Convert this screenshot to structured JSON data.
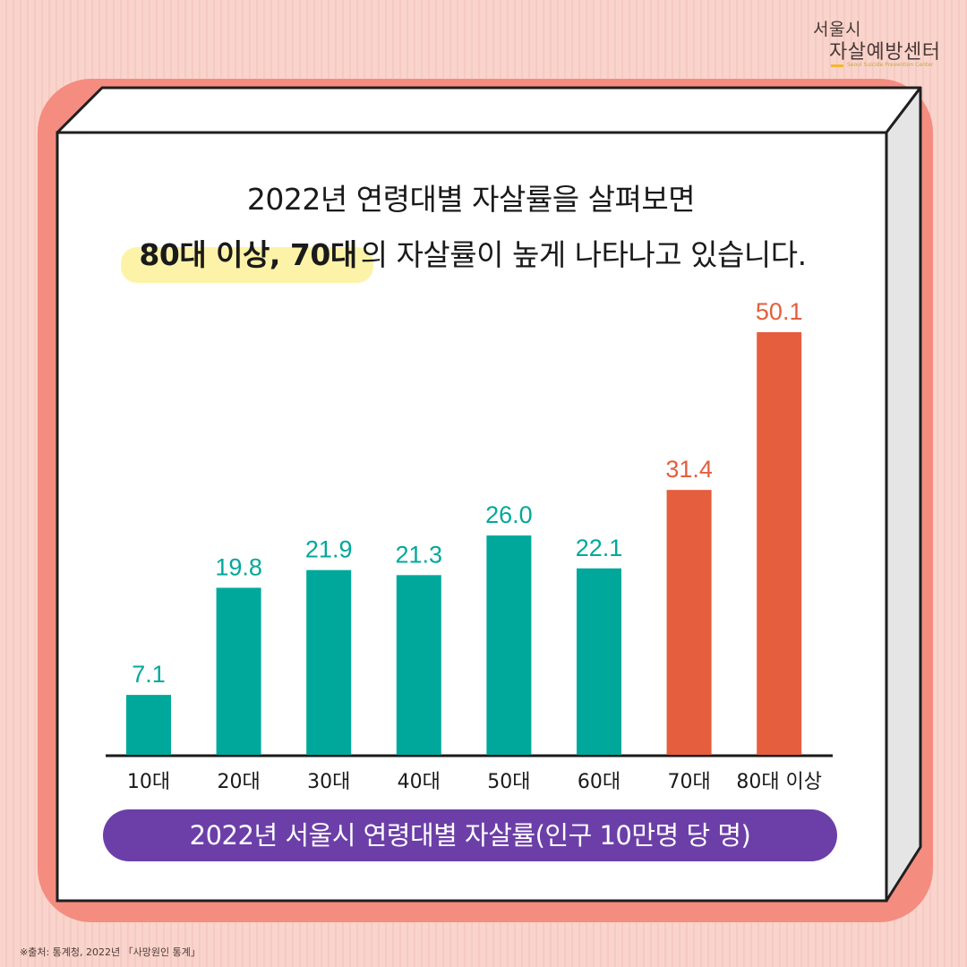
{
  "logo": {
    "line1": "서울시",
    "line2": "자살예방센터",
    "subtitle": "Seoul Suicide Prevention Center"
  },
  "headline": {
    "line1": "2022년 연령대별 자살률을 살펴보면",
    "highlight": "80대 이상, 70대",
    "line2_rest": "의 자살률이 높게 나타나고 있습니다."
  },
  "chart_data": {
    "type": "bar",
    "title": "2022년 서울시 연령대별 자살률(인구 10만명 당 명)",
    "categories": [
      "10대",
      "20대",
      "30대",
      "40대",
      "50대",
      "60대",
      "70대",
      "80대 이상"
    ],
    "values": [
      7.1,
      19.8,
      21.9,
      21.3,
      26.0,
      22.1,
      31.4,
      50.1
    ],
    "value_labels": [
      "7.1",
      "19.8",
      "21.9",
      "21.3",
      "26.0",
      "22.1",
      "31.4",
      "50.1"
    ],
    "highlighted": [
      false,
      false,
      false,
      false,
      false,
      false,
      true,
      true
    ],
    "ylim": [
      0,
      50.1
    ],
    "grid": false,
    "colors": {
      "normal": "#00a89b",
      "highlight": "#e55e3e"
    }
  },
  "source": "※출처: 통계청, 2022년 「사망원인 통계」"
}
